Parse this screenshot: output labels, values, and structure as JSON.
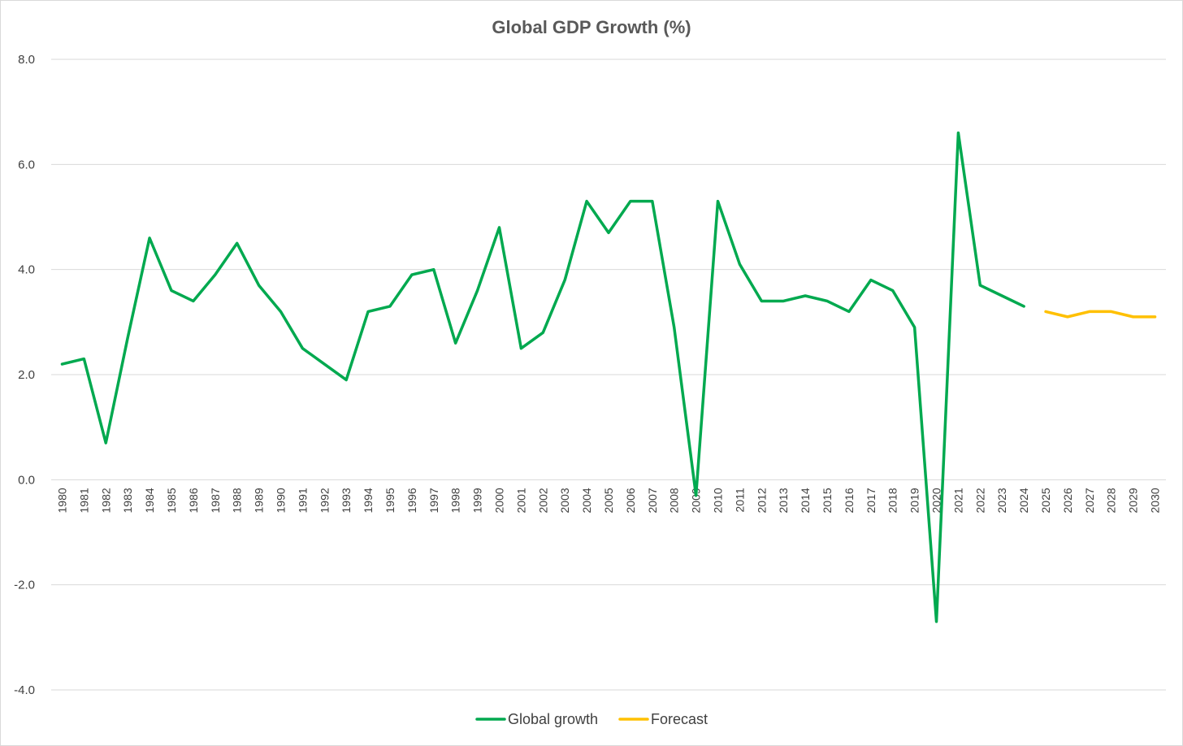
{
  "chart_data": {
    "type": "line",
    "title": "Global GDP Growth (%)",
    "xlabel": "",
    "ylabel": "",
    "ylim": [
      -4.0,
      8.0
    ],
    "yticks": [
      "8.0",
      "6.0",
      "4.0",
      "2.0",
      "0.0",
      "-2.0",
      "-4.0"
    ],
    "ytick_values": [
      8,
      6,
      4,
      2,
      0,
      -2,
      -4
    ],
    "grid": true,
    "legend_position": "bottom",
    "categories": [
      "1980",
      "1981",
      "1982",
      "1983",
      "1984",
      "1985",
      "1986",
      "1987",
      "1988",
      "1989",
      "1990",
      "1991",
      "1992",
      "1993",
      "1994",
      "1995",
      "1996",
      "1997",
      "1998",
      "1999",
      "2000",
      "2001",
      "2002",
      "2003",
      "2004",
      "2005",
      "2006",
      "2007",
      "2008",
      "2009",
      "2010",
      "2011",
      "2012",
      "2013",
      "2014",
      "2015",
      "2016",
      "2017",
      "2018",
      "2019",
      "2020",
      "2021",
      "2022",
      "2023",
      "2024",
      "2025",
      "2026",
      "2027",
      "2028",
      "2029",
      "2030"
    ],
    "series": [
      {
        "name": "Global growth",
        "color": "#00a94f",
        "values": [
          2.2,
          2.3,
          0.7,
          2.7,
          4.6,
          3.6,
          3.4,
          3.9,
          4.5,
          3.7,
          3.2,
          2.5,
          2.2,
          1.9,
          3.2,
          3.3,
          3.9,
          4.0,
          2.6,
          3.6,
          4.8,
          2.5,
          2.8,
          3.8,
          5.3,
          4.7,
          5.3,
          5.3,
          2.9,
          -0.3,
          5.3,
          4.1,
          3.4,
          3.4,
          3.5,
          3.4,
          3.2,
          3.8,
          3.6,
          2.9,
          -2.7,
          6.6,
          3.7,
          3.5,
          3.3,
          null,
          null,
          null,
          null,
          null,
          null
        ]
      },
      {
        "name": "Forecast",
        "color": "#ffc000",
        "values": [
          null,
          null,
          null,
          null,
          null,
          null,
          null,
          null,
          null,
          null,
          null,
          null,
          null,
          null,
          null,
          null,
          null,
          null,
          null,
          null,
          null,
          null,
          null,
          null,
          null,
          null,
          null,
          null,
          null,
          null,
          null,
          null,
          null,
          null,
          null,
          null,
          null,
          null,
          null,
          null,
          null,
          null,
          null,
          null,
          null,
          3.2,
          3.1,
          3.2,
          3.2,
          3.1,
          3.1
        ]
      }
    ]
  }
}
